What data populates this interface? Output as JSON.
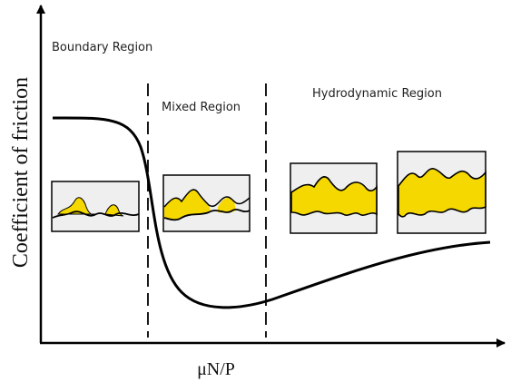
{
  "diagram": {
    "y_axis_label": "Coefficient of friction",
    "x_axis_label": "μN/P",
    "regions": [
      "Boundary Region",
      "Mixed Region",
      "Hydrodynamic Region"
    ]
  }
}
